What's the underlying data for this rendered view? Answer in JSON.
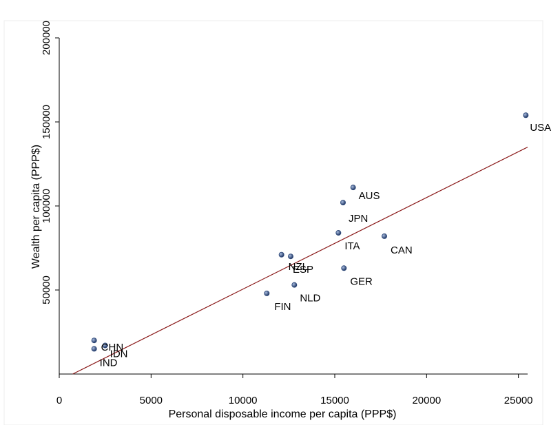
{
  "chart_data": {
    "type": "scatter",
    "xlabel": "Personal disposable income per capita (PPP$)",
    "ylabel": "Wealth per capita (PPP$)",
    "xlim": [
      0,
      25500
    ],
    "ylim": [
      0,
      200000
    ],
    "x_ticks": [
      0,
      5000,
      10000,
      15000,
      20000,
      25000
    ],
    "y_ticks": [
      50000,
      100000,
      150000,
      200000
    ],
    "x_tick_labels": [
      "0",
      "5000",
      "10000",
      "15000",
      "20000",
      "25000"
    ],
    "y_tick_labels": [
      "50000",
      "100000",
      "150000",
      "200000"
    ],
    "grid": false,
    "points": [
      {
        "label": "USA",
        "x": 25400,
        "y": 154000
      },
      {
        "label": "AUS",
        "x": 16000,
        "y": 111000
      },
      {
        "label": "JPN",
        "x": 15450,
        "y": 102000
      },
      {
        "label": "ITA",
        "x": 15200,
        "y": 84000
      },
      {
        "label": "CAN",
        "x": 17700,
        "y": 82000
      },
      {
        "label": "NZL",
        "x": 12100,
        "y": 71000
      },
      {
        "label": "ESP",
        "x": 12600,
        "y": 70000
      },
      {
        "label": "GER",
        "x": 15500,
        "y": 63000
      },
      {
        "label": "NLD",
        "x": 12800,
        "y": 53000
      },
      {
        "label": "FIN",
        "x": 11300,
        "y": 48000
      },
      {
        "label": "CHN",
        "x": 1900,
        "y": 20000
      },
      {
        "label": "IND",
        "x": 1900,
        "y": 15000
      },
      {
        "label": "IDN",
        "x": 2500,
        "y": 17000
      }
    ],
    "fit_line": {
      "x": [
        0,
        25500
      ],
      "y": [
        -4000,
        135000
      ]
    },
    "colors": {
      "point": "#2f4a7a",
      "line": "#8b1a1a"
    }
  }
}
